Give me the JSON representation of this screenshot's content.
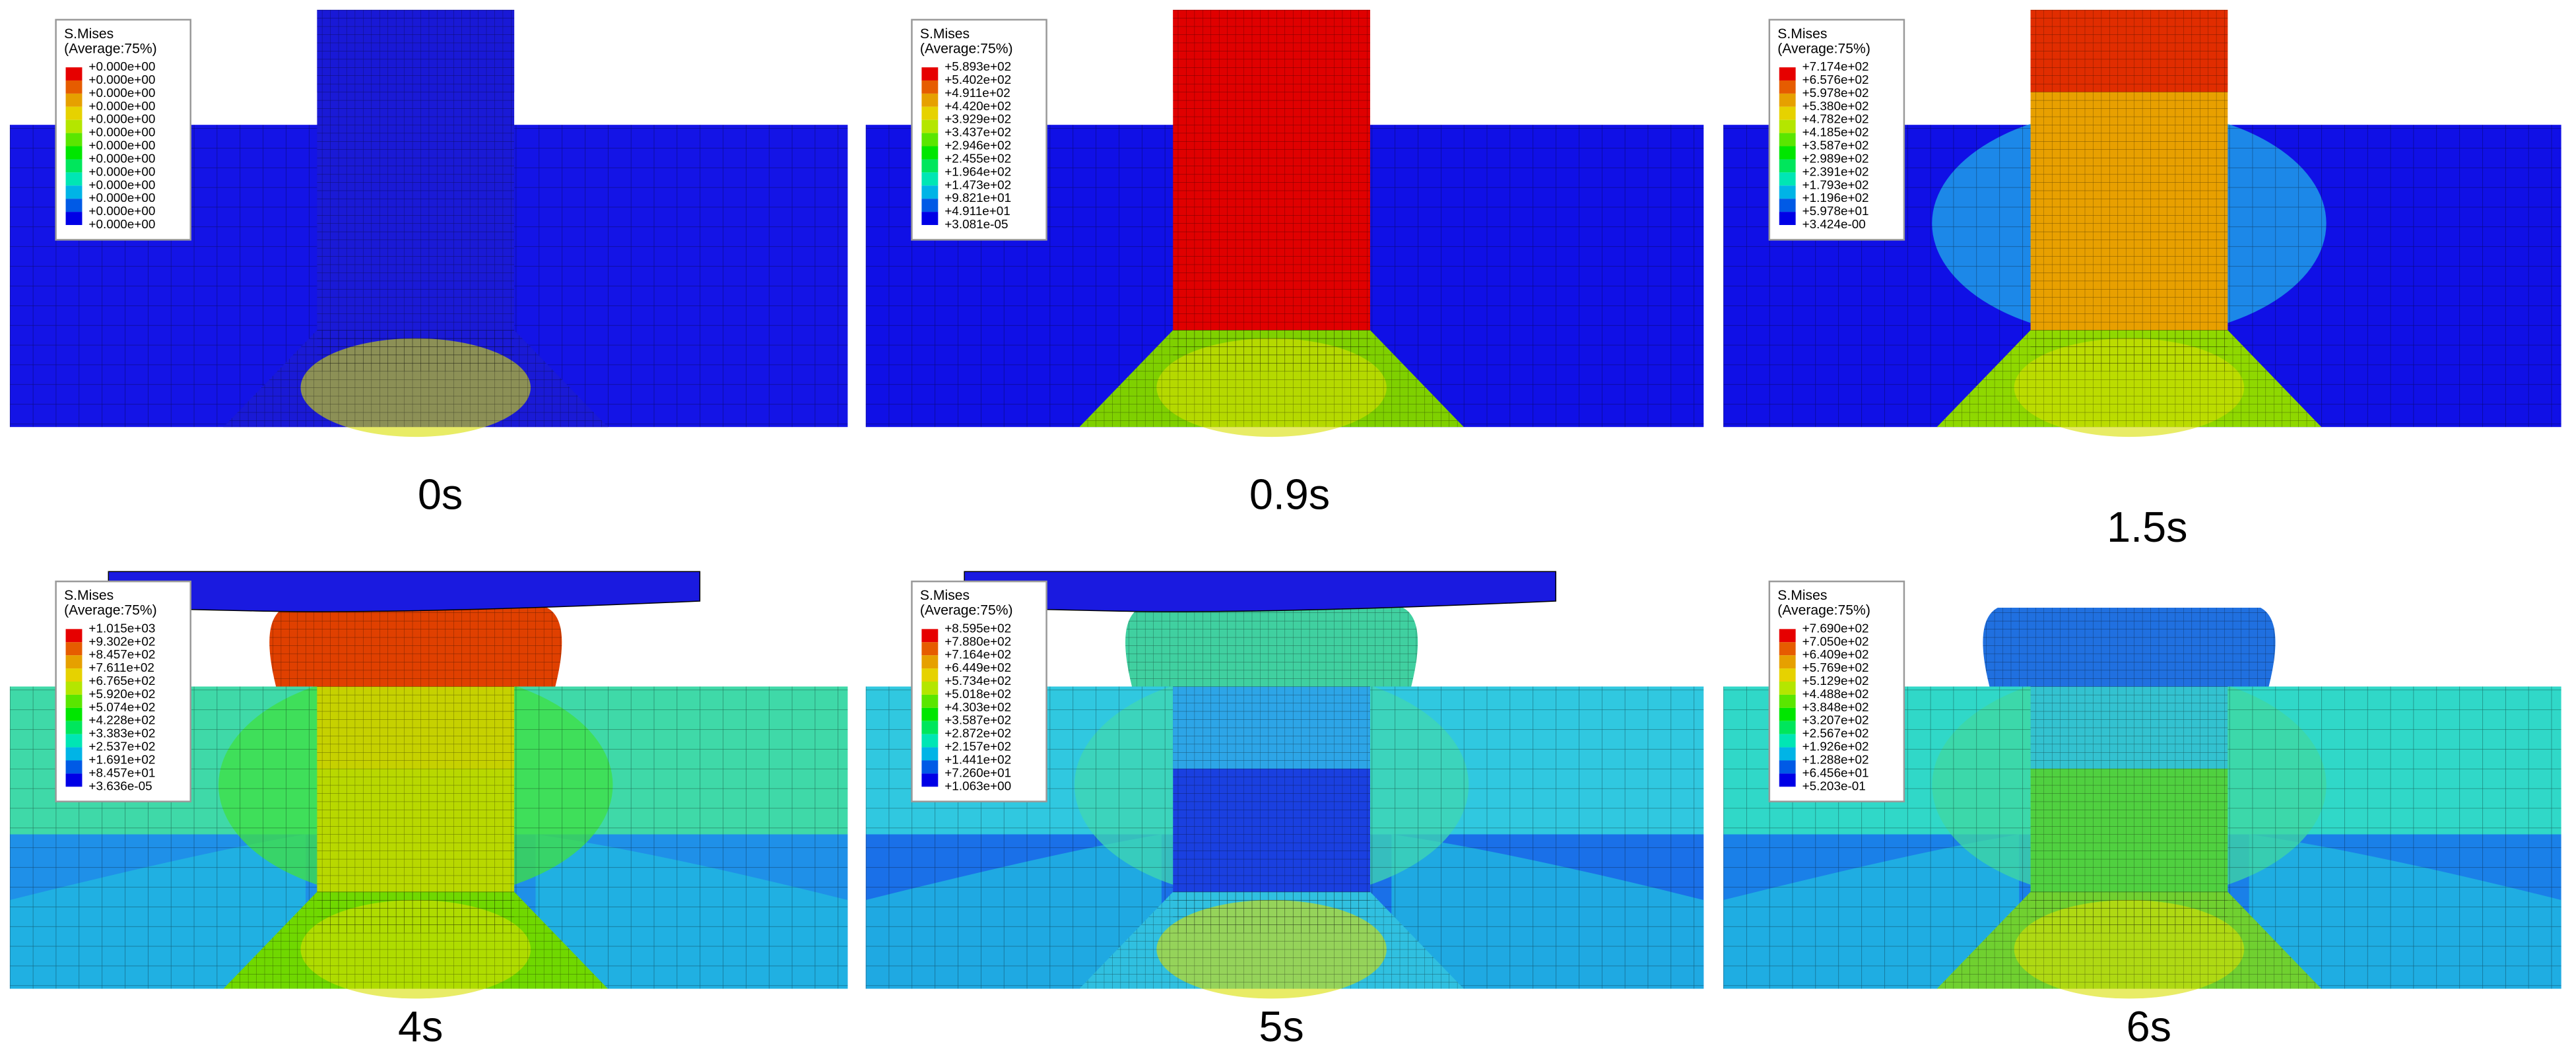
{
  "panels": [
    {
      "caption": "0s",
      "legend": {
        "title": "S.Mises",
        "subtitle": "(Average:75%)",
        "labels": [
          "+0.000e+00",
          "+0.000e+00",
          "+0.000e+00",
          "+0.000e+00",
          "+0.000e+00",
          "+0.000e+00",
          "+0.000e+00",
          "+0.000e+00",
          "+0.000e+00",
          "+0.000e+00",
          "+0.000e+00",
          "+0.000e+00",
          "+0.000e+00"
        ]
      }
    },
    {
      "caption": "0.9s",
      "legend": {
        "title": "S.Mises",
        "subtitle": "(Average:75%)",
        "labels": [
          "+5.893e+02",
          "+5.402e+02",
          "+4.911e+02",
          "+4.420e+02",
          "+3.929e+02",
          "+3.437e+02",
          "+2.946e+02",
          "+2.455e+02",
          "+1.964e+02",
          "+1.473e+02",
          "+9.821e+01",
          "+4.911e+01",
          "+3.081e-05"
        ]
      }
    },
    {
      "caption": "1.5s",
      "legend": {
        "title": "S.Mises",
        "subtitle": "(Average:75%)",
        "labels": [
          "+7.174e+02",
          "+6.576e+02",
          "+5.978e+02",
          "+5.380e+02",
          "+4.782e+02",
          "+4.185e+02",
          "+3.587e+02",
          "+2.989e+02",
          "+2.391e+02",
          "+1.793e+02",
          "+1.196e+02",
          "+5.978e+01",
          "+3.424e-00"
        ]
      }
    },
    {
      "caption": "4s",
      "legend": {
        "title": "S.Mises",
        "subtitle": "(Average:75%)",
        "labels": [
          "+1.015e+03",
          "+9.302e+02",
          "+8.457e+02",
          "+7.611e+02",
          "+6.765e+02",
          "+5.920e+02",
          "+5.074e+02",
          "+4.228e+02",
          "+3.383e+02",
          "+2.537e+02",
          "+1.691e+02",
          "+8.457e+01",
          "+3.636e-05"
        ]
      }
    },
    {
      "caption": "5s",
      "legend": {
        "title": "S.Mises",
        "subtitle": "(Average:75%)",
        "labels": [
          "+8.595e+02",
          "+7.880e+02",
          "+7.164e+02",
          "+6.449e+02",
          "+5.734e+02",
          "+5.018e+02",
          "+4.303e+02",
          "+3.587e+02",
          "+2.872e+02",
          "+2.157e+02",
          "+1.441e+02",
          "+7.260e+01",
          "+1.063e+00"
        ]
      }
    },
    {
      "caption": "6s",
      "legend": {
        "title": "S.Mises",
        "subtitle": "(Average:75%)",
        "labels": [
          "+7.690e+02",
          "+7.050e+02",
          "+6.409e+02",
          "+5.769e+02",
          "+5.129e+02",
          "+4.488e+02",
          "+3.848e+02",
          "+3.207e+02",
          "+2.567e+02",
          "+1.926e+02",
          "+1.288e+02",
          "+6.456e+01",
          "+5.203e-01"
        ]
      }
    }
  ]
}
